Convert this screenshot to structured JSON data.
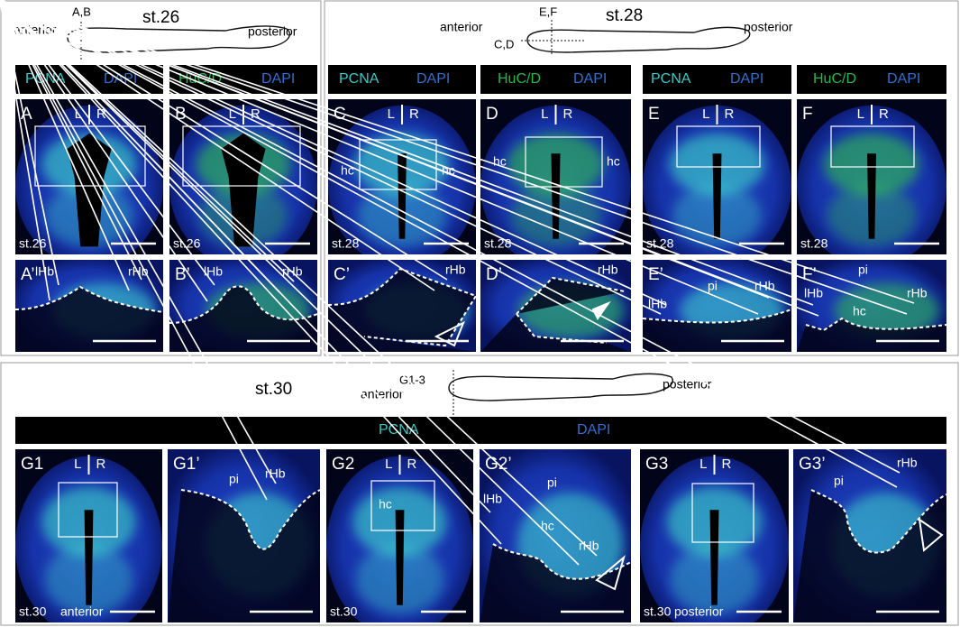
{
  "figure": {
    "st26": {
      "anterior": "anterior",
      "section": "A,B",
      "stage": "st.26",
      "posterior": "posterior",
      "headers": [
        {
          "marker": "PCNA",
          "dapi": "DAPI"
        },
        {
          "marker": "HuC/D",
          "dapi": "DAPI"
        }
      ],
      "panels": [
        {
          "letter": "A",
          "left": "L",
          "right": "R",
          "stage": "st.26"
        },
        {
          "letter": "B",
          "left": "L",
          "right": "R",
          "stage": "st.26"
        },
        {
          "letter": "A’",
          "labels": [
            "lHb",
            "rHb"
          ]
        },
        {
          "letter": "B’",
          "labels": [
            "lHb",
            "rHb"
          ]
        }
      ]
    },
    "st28": {
      "anterior": "anterior",
      "section_ef": "E,F",
      "stage": "st.28",
      "section_cd": "C,D",
      "posterior": "posterior",
      "headers": [
        {
          "marker": "PCNA",
          "dapi": "DAPI"
        },
        {
          "marker": "HuC/D",
          "dapi": "DAPI"
        },
        {
          "marker": "PCNA",
          "dapi": "DAPI"
        },
        {
          "marker": "HuC/D",
          "dapi": "DAPI"
        }
      ],
      "panels": [
        {
          "letter": "C",
          "left": "L",
          "right": "R",
          "labels": [
            "hc",
            "hc"
          ],
          "stage": "st.28"
        },
        {
          "letter": "D",
          "left": "L",
          "right": "R",
          "labels": [
            "hc",
            "hc"
          ],
          "stage": "st.28"
        },
        {
          "letter": "E",
          "left": "L",
          "right": "R",
          "stage": "st.28"
        },
        {
          "letter": "F",
          "left": "L",
          "right": "R",
          "stage": "st.28"
        },
        {
          "letter": "C’",
          "labels": [
            "rHb"
          ]
        },
        {
          "letter": "D’",
          "labels": [
            "rHb"
          ]
        },
        {
          "letter": "E’",
          "labels": [
            "lHb",
            "pi",
            "rHb"
          ]
        },
        {
          "letter": "F’",
          "labels": [
            "pi",
            "lHb",
            "hc",
            "rHb"
          ]
        }
      ]
    },
    "st30": {
      "stage": "st.30",
      "section": "G1-3",
      "anterior": "anterior",
      "posterior": "posterior",
      "header": {
        "marker": "PCNA",
        "dapi": "DAPI"
      },
      "panels": [
        {
          "letter": "G1",
          "left": "L",
          "right": "R",
          "stage": "st.30",
          "labels": [
            "anterior"
          ]
        },
        {
          "letter": "G1’",
          "labels": [
            "pi",
            "rHb"
          ]
        },
        {
          "letter": "G2",
          "left": "L",
          "right": "R",
          "labels": [
            "hc"
          ],
          "stage": "st.30"
        },
        {
          "letter": "G2’",
          "labels": [
            "pi",
            "lHb",
            "hc",
            "rHb"
          ]
        },
        {
          "letter": "G3",
          "left": "L",
          "right": "R",
          "stage": "st.30",
          "labels": [
            "posterior"
          ]
        },
        {
          "letter": "G3’",
          "labels": [
            "pi",
            "rHb"
          ]
        }
      ]
    }
  }
}
